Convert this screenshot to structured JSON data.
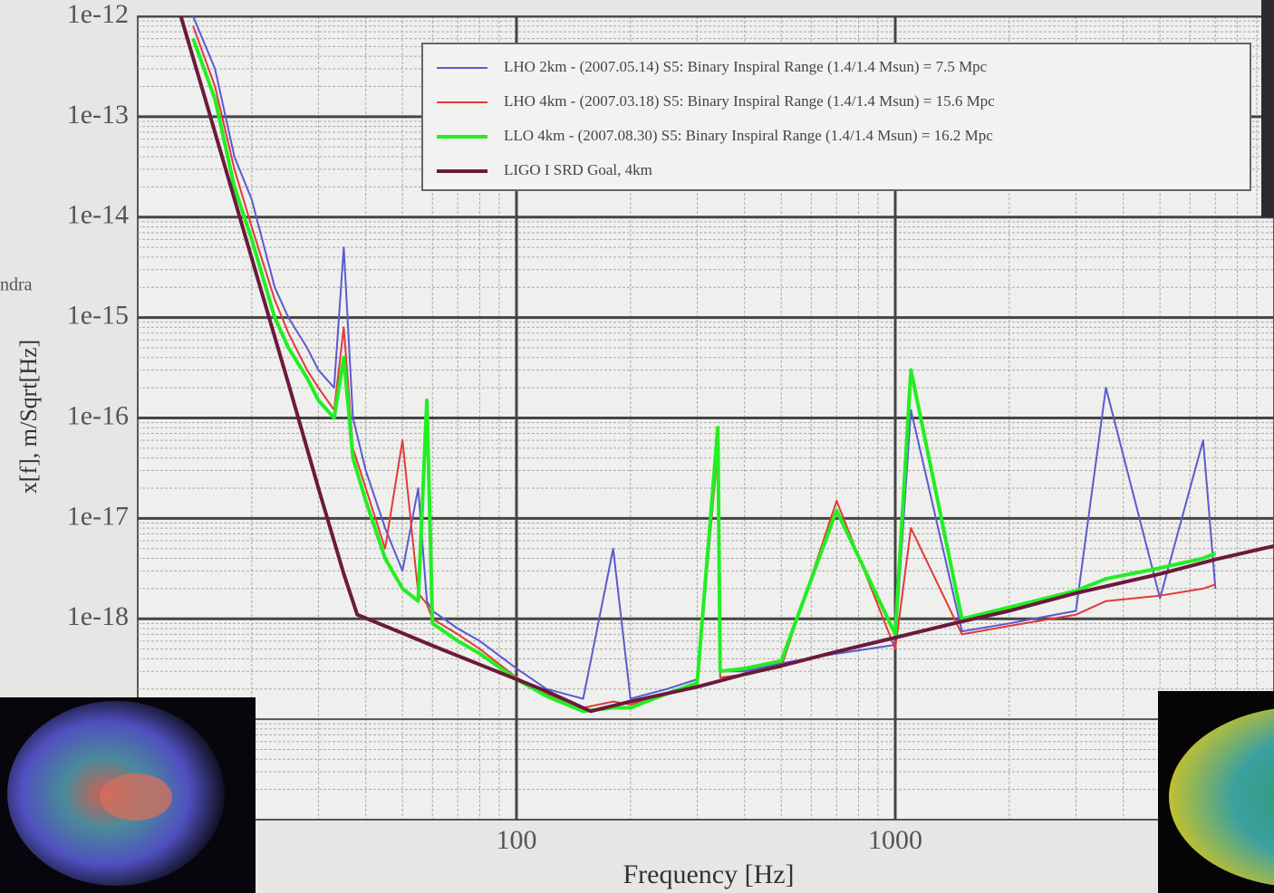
{
  "slide": {
    "fragment": "ndra"
  },
  "chart_data": {
    "type": "line",
    "x_label": "Frequency [Hz]",
    "y_label": "x[f], m/Sqrt[Hz]",
    "log_x": true,
    "log_y": true,
    "grid": true,
    "minor_grid": true,
    "legend": "upper right",
    "xlim": [
      10,
      10000
    ],
    "xticks": [
      100,
      1000
    ],
    "ylim": [
      1e-20,
      1e-12
    ],
    "yticks": [
      {
        "value": 1e-12,
        "label": "1e-12"
      },
      {
        "value": 1e-13,
        "label": "1e-13"
      },
      {
        "value": 1e-14,
        "label": "1e-14"
      },
      {
        "value": 1e-15,
        "label": "1e-15"
      },
      {
        "value": 1e-16,
        "label": "1e-16"
      },
      {
        "value": 1e-17,
        "label": "1e-17"
      },
      {
        "value": 1e-18,
        "label": "1e-18"
      }
    ],
    "x": [
      14,
      16,
      18,
      20,
      23,
      25,
      28,
      30,
      33,
      35,
      37,
      40,
      45,
      50,
      55,
      58,
      60,
      70,
      80,
      100,
      120,
      150,
      180,
      200,
      250,
      300,
      340,
      345,
      400,
      500,
      700,
      1000,
      1100,
      1500,
      2000,
      3000,
      3600,
      5000,
      6500,
      7000
    ],
    "series": [
      {
        "name": "LHO 2km - (2007.05.14) S5: Binary Inspiral Range (1.4/1.4 Msun) = 7.5 Mpc",
        "color": "#5a5ad0",
        "width": 2,
        "values": [
          1e-12,
          3e-13,
          4e-14,
          1.5e-14,
          2e-15,
          1e-15,
          5e-16,
          3e-16,
          2e-16,
          5e-15,
          1e-16,
          3e-17,
          8e-18,
          3e-18,
          2e-17,
          1.5e-18,
          1.2e-18,
          8e-19,
          6e-19,
          3.2e-19,
          2e-19,
          1.6e-19,
          5e-18,
          1.6e-19,
          2e-19,
          2.5e-19,
          6e-17,
          3e-19,
          3e-19,
          3.6e-19,
          4.5e-19,
          5.5e-19,
          1.2e-16,
          7.5e-19,
          9e-19,
          1.2e-18,
          2e-16,
          1.6e-18,
          6e-17,
          2e-18
        ]
      },
      {
        "name": "LHO 4km - (2007.03.18) S5: Binary Inspiral Range (1.4/1.4 Msun) = 15.6 Mpc",
        "color": "#e03a3a",
        "width": 2,
        "values": [
          8e-13,
          2e-13,
          3e-14,
          8e-15,
          1.5e-15,
          7e-16,
          3e-16,
          2e-16,
          1.2e-16,
          8e-16,
          5e-17,
          2e-17,
          5e-18,
          6e-17,
          1.8e-18,
          1.4e-18,
          1e-18,
          7e-19,
          5e-19,
          2.6e-19,
          1.8e-19,
          1.3e-19,
          1.5e-19,
          1.4e-19,
          1.8e-19,
          2.2e-19,
          5e-17,
          2.6e-19,
          2.8e-19,
          3.3e-19,
          1.5e-17,
          5e-19,
          8e-18,
          7e-19,
          8.5e-19,
          1.1e-18,
          1.5e-18,
          1.7e-18,
          2e-18,
          2.2e-18
        ]
      },
      {
        "name": "LLO 4km - (2007.08.30) S5: Binary Inspiral Range (1.4/1.4 Msun) = 16.2 Mpc",
        "color": "#22ee22",
        "width": 4,
        "values": [
          6e-13,
          1.5e-13,
          2e-14,
          6e-15,
          1e-15,
          5e-16,
          2.5e-16,
          1.5e-16,
          1e-16,
          4e-16,
          4e-17,
          1.5e-17,
          4e-18,
          2e-18,
          1.5e-18,
          1.5e-16,
          9e-19,
          6e-19,
          4.5e-19,
          2.5e-19,
          1.7e-19,
          1.2e-19,
          1.3e-19,
          1.3e-19,
          1.8e-19,
          2.3e-19,
          8e-17,
          3e-19,
          3.2e-19,
          3.8e-19,
          1.2e-17,
          7e-19,
          3e-16,
          1e-18,
          1.3e-18,
          1.9e-18,
          2.5e-18,
          3.2e-18,
          4e-18,
          4.5e-18
        ]
      },
      {
        "name": "LIGO I SRD Goal, 4km",
        "color": "#6a1a3c",
        "width": 4,
        "x": [
          13,
          15,
          20,
          25,
          30,
          35,
          38,
          50,
          60,
          80,
          100,
          120,
          157,
          200,
          300,
          400,
          500,
          700,
          1000,
          1500,
          2000,
          3000,
          5000,
          7000,
          10000
        ],
        "values": [
          1e-12,
          1.6e-13,
          3.9e-15,
          2.2e-16,
          2e-17,
          2.8e-18,
          1.1e-18,
          7.2e-19,
          5.4e-19,
          3.5e-19,
          2.5e-19,
          1.9e-19,
          1.2e-19,
          1.5e-19,
          2.1e-19,
          2.8e-19,
          3.4e-19,
          4.7e-19,
          6.5e-19,
          9.4e-19,
          1.2e-18,
          1.8e-18,
          2.8e-18,
          3.9e-18,
          5.3e-18
        ]
      }
    ]
  }
}
